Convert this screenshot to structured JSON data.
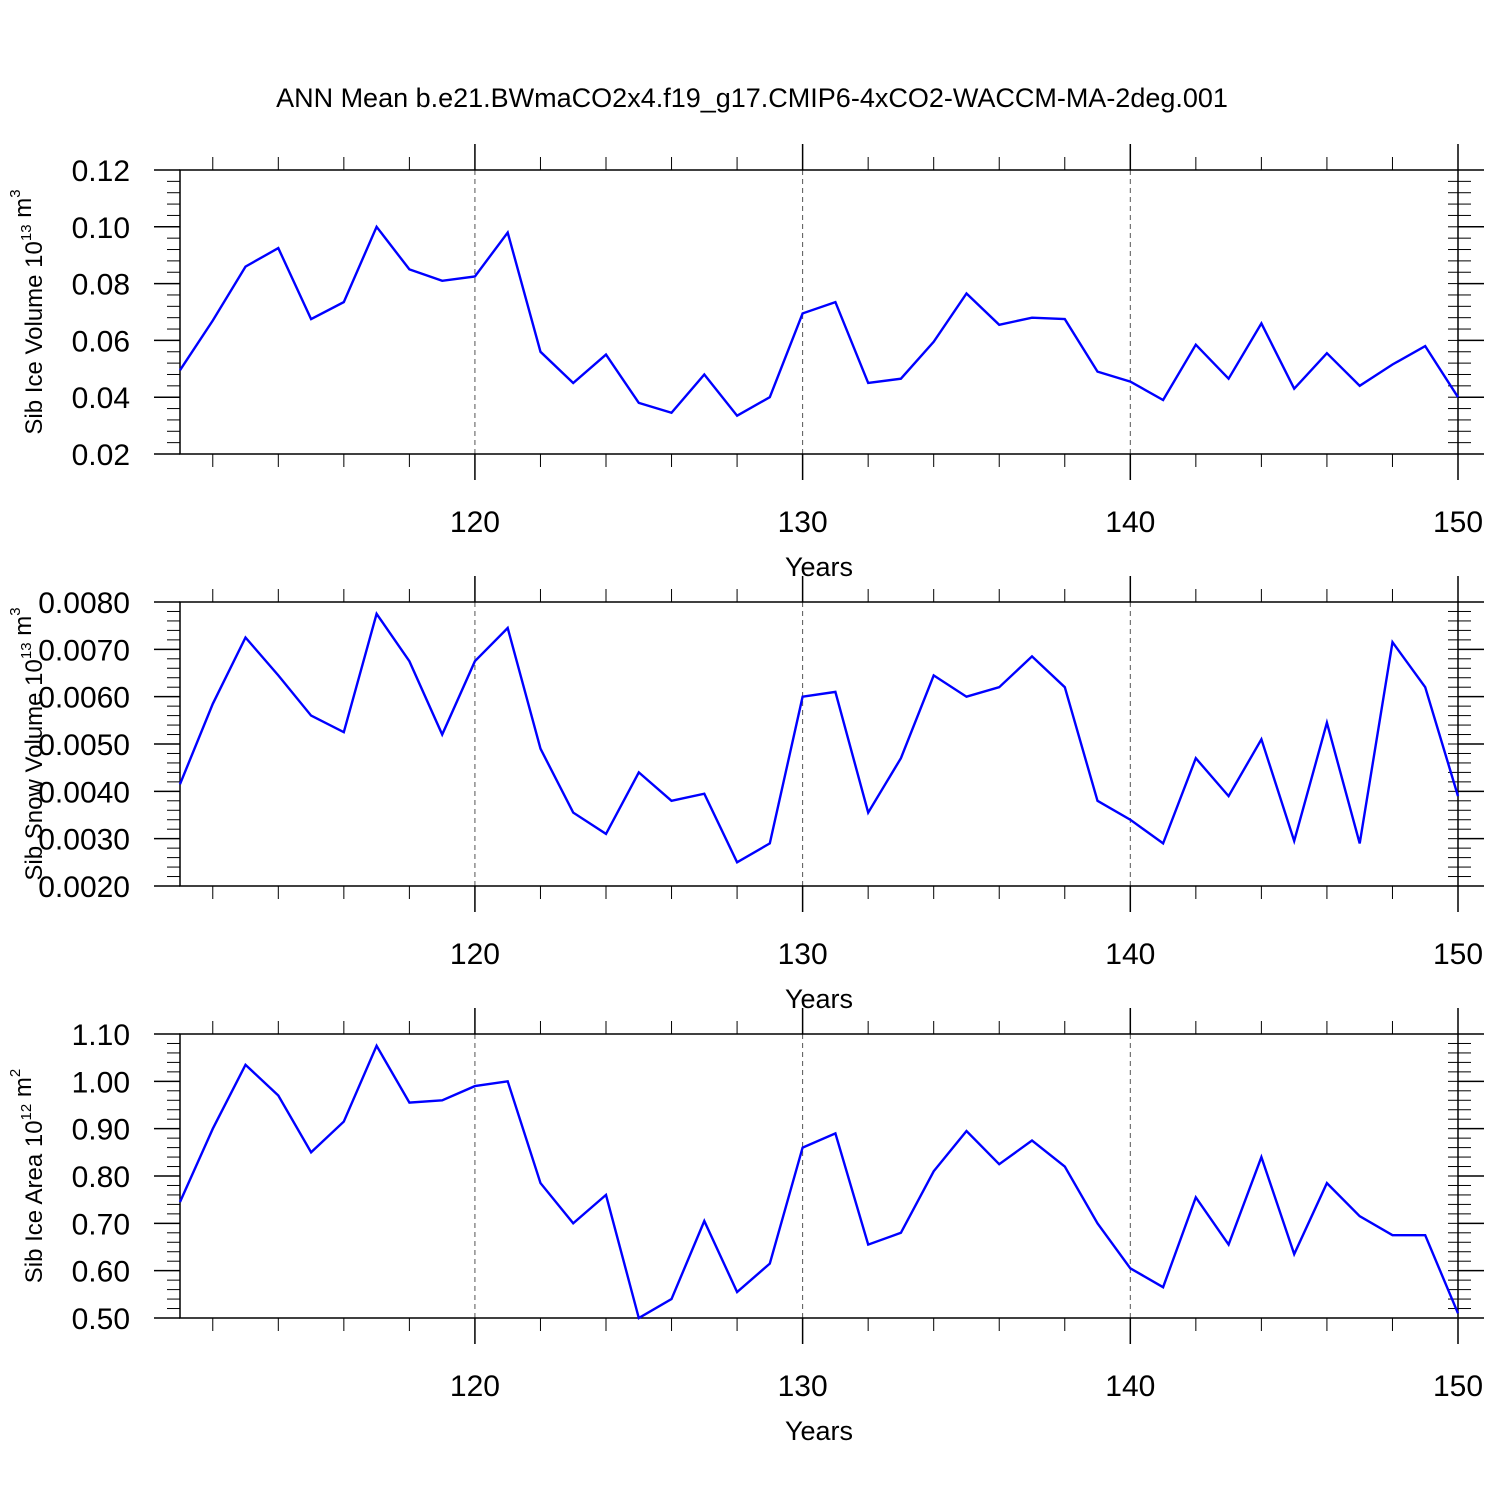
{
  "figure": {
    "title": "ANN Mean b.e21.BWmaCO2x4.f19_g17.CMIP6-4xCO2-WACCM-MA-2deg.001"
  },
  "chart_data": [
    {
      "type": "line",
      "xlabel": "Years",
      "ylabel": "Sib Ice Volume 10",
      "ylabel_exp": "13",
      "ylabel_unit": " m",
      "ylabel_unit_exp": "3",
      "xlim": [
        111,
        150
      ],
      "ylim": [
        0.02,
        0.12
      ],
      "xticks": [
        120,
        130,
        140,
        150
      ],
      "xtick_labels": [
        "120",
        "130",
        "140",
        "150"
      ],
      "yticks": [
        0.02,
        0.04,
        0.06,
        0.08,
        0.1,
        0.12
      ],
      "ytick_labels": [
        "0.02",
        "0.04",
        "0.06",
        "0.08",
        "0.10",
        "0.12"
      ],
      "grid": "dashed vertical at major x ticks",
      "series": [
        {
          "color": "#0000ff",
          "x": [
            111,
            112,
            113,
            114,
            115,
            116,
            117,
            118,
            119,
            120,
            121,
            122,
            123,
            124,
            125,
            126,
            127,
            128,
            129,
            130,
            131,
            132,
            133,
            134,
            135,
            136,
            137,
            138,
            139,
            140,
            141,
            142,
            143,
            144,
            145,
            146,
            147,
            148,
            149,
            150
          ],
          "y": [
            0.0495,
            0.067,
            0.086,
            0.0925,
            0.0675,
            0.0735,
            0.1,
            0.085,
            0.081,
            0.0825,
            0.098,
            0.056,
            0.045,
            0.055,
            0.038,
            0.0345,
            0.048,
            0.0335,
            0.04,
            0.0695,
            0.0735,
            0.045,
            0.0465,
            0.0595,
            0.0765,
            0.0655,
            0.068,
            0.0675,
            0.049,
            0.0455,
            0.039,
            0.0585,
            0.0465,
            0.066,
            0.043,
            0.0555,
            0.044,
            0.0515,
            0.058,
            0.04
          ]
        }
      ]
    },
    {
      "type": "line",
      "xlabel": "Years",
      "ylabel": "Sib Snow Volume 10",
      "ylabel_exp": "13",
      "ylabel_unit": " m",
      "ylabel_unit_exp": "3",
      "xlim": [
        111,
        150
      ],
      "ylim": [
        0.002,
        0.008
      ],
      "xticks": [
        120,
        130,
        140,
        150
      ],
      "xtick_labels": [
        "120",
        "130",
        "140",
        "150"
      ],
      "yticks": [
        0.002,
        0.003,
        0.004,
        0.005,
        0.006,
        0.007,
        0.008
      ],
      "ytick_labels": [
        "0.0020",
        "0.0030",
        "0.0040",
        "0.0050",
        "0.0060",
        "0.0070",
        "0.0080"
      ],
      "grid": "dashed vertical at major x ticks",
      "series": [
        {
          "color": "#0000ff",
          "x": [
            111,
            112,
            113,
            114,
            115,
            116,
            117,
            118,
            119,
            120,
            121,
            122,
            123,
            124,
            125,
            126,
            127,
            128,
            129,
            130,
            131,
            132,
            133,
            134,
            135,
            136,
            137,
            138,
            139,
            140,
            141,
            142,
            143,
            144,
            145,
            146,
            147,
            148,
            149,
            150
          ],
          "y": [
            0.00415,
            0.00585,
            0.00725,
            0.00645,
            0.0056,
            0.00525,
            0.00775,
            0.00675,
            0.0052,
            0.00675,
            0.00745,
            0.0049,
            0.00355,
            0.0031,
            0.0044,
            0.0038,
            0.00395,
            0.0025,
            0.0029,
            0.006,
            0.0061,
            0.00355,
            0.0047,
            0.00645,
            0.006,
            0.0062,
            0.00685,
            0.0062,
            0.0038,
            0.0034,
            0.0029,
            0.0047,
            0.0039,
            0.0051,
            0.00295,
            0.00545,
            0.0029,
            0.00715,
            0.0062,
            0.0039
          ]
        }
      ]
    },
    {
      "type": "line",
      "xlabel": "Years",
      "ylabel": "Sib Ice Area 10",
      "ylabel_exp": "12",
      "ylabel_unit": " m",
      "ylabel_unit_exp": "2",
      "xlim": [
        111,
        150
      ],
      "ylim": [
        0.5,
        1.1
      ],
      "xticks": [
        120,
        130,
        140,
        150
      ],
      "xtick_labels": [
        "120",
        "130",
        "140",
        "150"
      ],
      "yticks": [
        0.5,
        0.6,
        0.7,
        0.8,
        0.9,
        1.0,
        1.1
      ],
      "ytick_labels": [
        "0.50",
        "0.60",
        "0.70",
        "0.80",
        "0.90",
        "1.00",
        "1.10"
      ],
      "grid": "dashed vertical at major x ticks",
      "series": [
        {
          "color": "#0000ff",
          "x": [
            111,
            112,
            113,
            114,
            115,
            116,
            117,
            118,
            119,
            120,
            121,
            122,
            123,
            124,
            125,
            126,
            127,
            128,
            129,
            130,
            131,
            132,
            133,
            134,
            135,
            136,
            137,
            138,
            139,
            140,
            141,
            142,
            143,
            144,
            145,
            146,
            147,
            148,
            149,
            150
          ],
          "y": [
            0.745,
            0.9,
            1.035,
            0.97,
            0.85,
            0.915,
            1.075,
            0.955,
            0.96,
            0.99,
            1.0,
            0.785,
            0.7,
            0.76,
            0.5,
            0.54,
            0.705,
            0.555,
            0.615,
            0.86,
            0.89,
            0.655,
            0.68,
            0.81,
            0.895,
            0.825,
            0.875,
            0.82,
            0.7,
            0.605,
            0.565,
            0.755,
            0.655,
            0.84,
            0.635,
            0.785,
            0.715,
            0.675,
            0.675,
            0.51
          ]
        }
      ]
    }
  ]
}
